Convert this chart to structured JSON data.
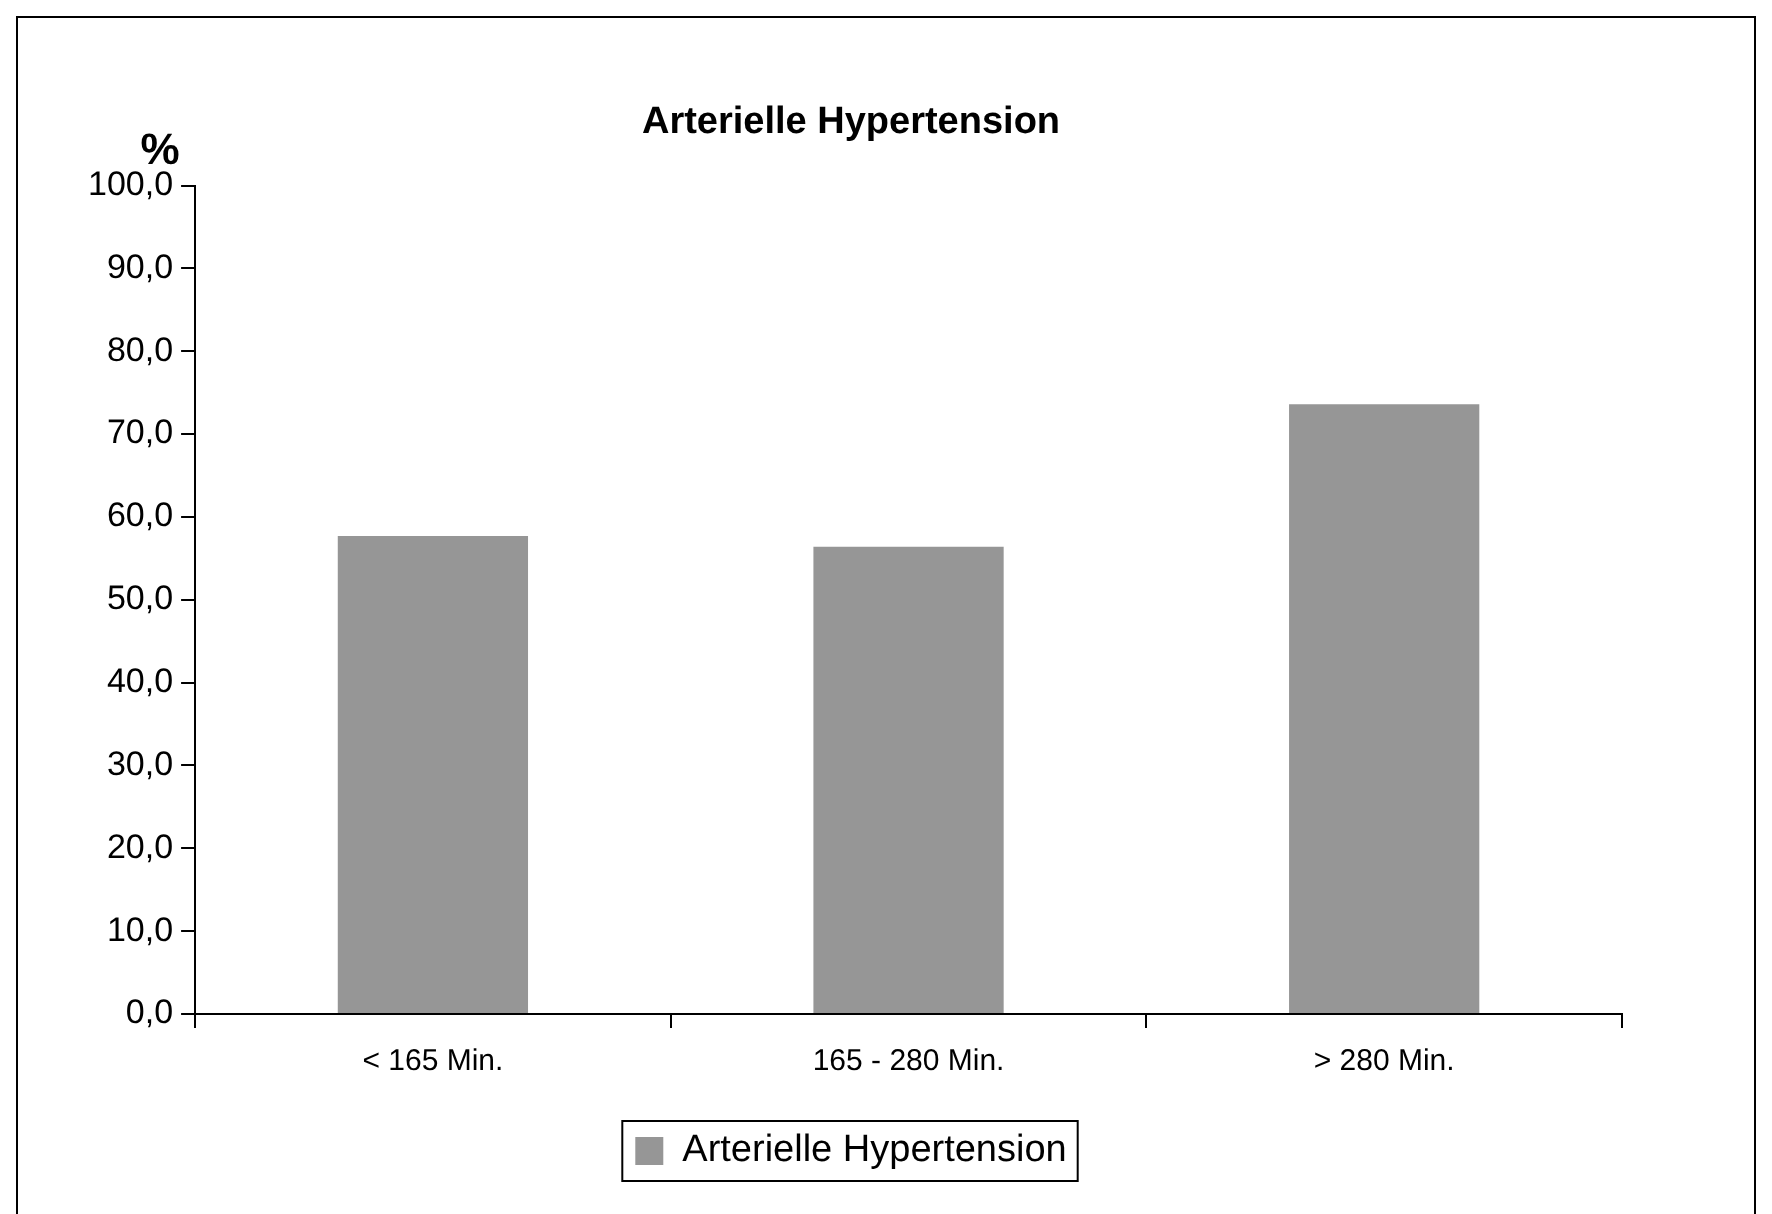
{
  "chart_data": {
    "type": "bar",
    "title": "Arterielle Hypertension",
    "ylabel": "%",
    "categories": [
      "< 165 Min.",
      "165 - 280 Min.",
      "> 280 Min."
    ],
    "series": [
      {
        "name": "Arterielle Hypertension",
        "color": "#969696",
        "values": [
          57.7,
          56.4,
          73.6
        ]
      }
    ],
    "ylim": [
      0,
      100
    ],
    "yticks": [
      {
        "value": 0,
        "label": "0,0"
      },
      {
        "value": 10,
        "label": "10,0"
      },
      {
        "value": 20,
        "label": "20,0"
      },
      {
        "value": 30,
        "label": "30,0"
      },
      {
        "value": 40,
        "label": "40,0"
      },
      {
        "value": 50,
        "label": "50,0"
      },
      {
        "value": 60,
        "label": "60,0"
      },
      {
        "value": 70,
        "label": "70,0"
      },
      {
        "value": 80,
        "label": "80,0"
      },
      {
        "value": 90,
        "label": "90,0"
      },
      {
        "value": 100,
        "label": "100,0"
      }
    ],
    "grid": false,
    "legend": "bottom"
  }
}
